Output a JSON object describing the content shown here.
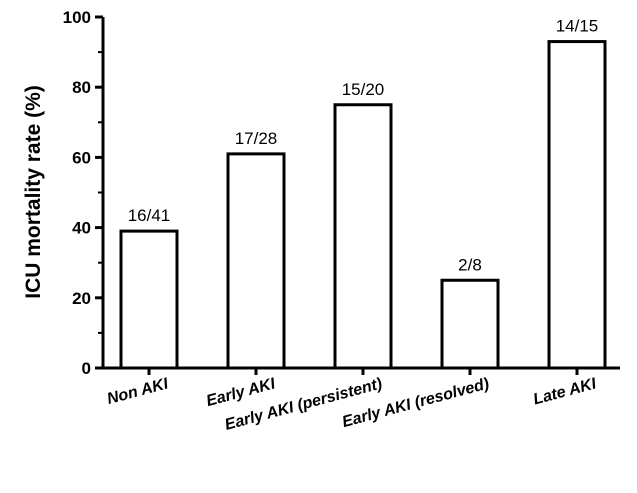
{
  "chart_data": {
    "type": "bar",
    "title": "",
    "xlabel": "",
    "ylabel": "ICU mortality rate (%)",
    "ylim": [
      0,
      100
    ],
    "yticks": [
      "0",
      "20",
      "40",
      "60",
      "80",
      "100"
    ],
    "categories": [
      "Non AKI",
      "Early AKI",
      "Early AKI (persistent)",
      "Early AKI (resolved)",
      "Late AKI"
    ],
    "values": [
      39,
      61,
      75,
      25,
      93
    ],
    "data_labels": [
      "16/41",
      "17/28",
      "15/20",
      "2/8",
      "14/15"
    ],
    "bar_fill": "#ffffff",
    "bar_stroke": "#000000",
    "grid": false,
    "legend": "none"
  }
}
